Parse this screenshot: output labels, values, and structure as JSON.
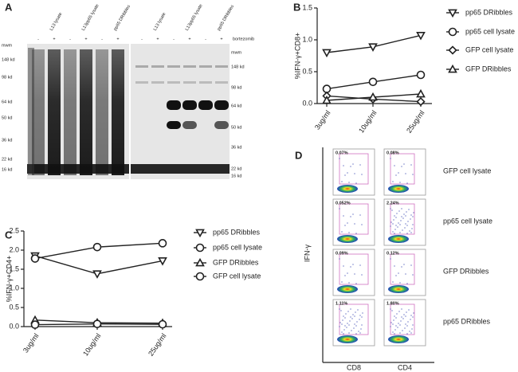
{
  "panel_a": {
    "panel": "A",
    "lanes_left": [
      "L13 lysate",
      "L13pp65 lysate",
      "pp65 DRibbles"
    ],
    "lanes_right": [
      "L13 lysate",
      "L13pp65 lysate",
      "pp65 DRibbles"
    ],
    "signs_left": [
      "-",
      "+",
      "-",
      "+",
      "-",
      "+"
    ],
    "signs_right": [
      "-",
      "+",
      "-",
      "+",
      "-",
      "+"
    ],
    "treatment": "bortezomib",
    "marker_title_left": "mwm",
    "marker_title_right": "mwm",
    "markers_left": [
      "148 kd",
      "98 kd",
      "64 kd",
      "50 kd",
      "36 kd",
      "22 kd",
      "16 kd"
    ],
    "markers_right": [
      "148 kd",
      "98 kd",
      "64 kd",
      "50 kd",
      "36 kd",
      "22 kd",
      "16 kd"
    ]
  },
  "chart_data": [
    {
      "type": "line",
      "panel": "B",
      "y_label": "%IFN-γ+CD8+",
      "categories": [
        "3ug/ml",
        "10ug/ml",
        "25ug/ml"
      ],
      "ylim": [
        0,
        1.5
      ],
      "yticks": [
        {
          "value": 0,
          "label": "0.0"
        },
        0.5,
        {
          "value": 1,
          "label": "1.0"
        },
        1.5
      ],
      "series": [
        {
          "name": "pp65 DRibbles",
          "color": "#222222",
          "marker": "triangle-down",
          "values": [
            0.8,
            0.89,
            1.07
          ]
        },
        {
          "name": "pp65 cell lysate",
          "color": "#222222",
          "marker": "circle",
          "values": [
            0.23,
            0.34,
            0.45
          ]
        },
        {
          "name": "GFP cell lysate",
          "color": "#222222",
          "marker": "diamond",
          "values": [
            0.12,
            0.07,
            0.03
          ]
        },
        {
          "name": "GFP DRibbles",
          "color": "#222222",
          "marker": "triangle-up",
          "values": [
            0.05,
            0.1,
            0.15
          ]
        }
      ]
    },
    {
      "type": "line",
      "panel": "C",
      "y_label": "%IFN-γ+CD4+",
      "categories": [
        "3ug/ml",
        "10ug/ml",
        "25ug/ml"
      ],
      "ylim": [
        0,
        2.5
      ],
      "yticks": [
        {
          "value": 0,
          "label": "0.0"
        },
        0.5,
        {
          "value": 1,
          "label": "1.0"
        },
        1.5,
        {
          "value": 2,
          "label": "2.0"
        },
        2.5
      ],
      "series": [
        {
          "name": "pp65 DRibbles",
          "color": "#222222",
          "marker": "triangle-down",
          "values": [
            1.85,
            1.38,
            1.72
          ]
        },
        {
          "name": "pp65 cell lysate",
          "color": "#222222",
          "marker": "circle",
          "values": [
            1.78,
            2.08,
            2.18
          ]
        },
        {
          "name": "GFP DRibbles",
          "color": "#222222",
          "marker": "triangle-up",
          "values": [
            0.17,
            0.1,
            0.09
          ]
        },
        {
          "name": "GFP cell lysate",
          "color": "#222222",
          "marker": "circle",
          "values": [
            0.05,
            0.07,
            0.06
          ]
        }
      ]
    }
  ],
  "panel_d": {
    "panel": "D",
    "y_label": "IFN-γ",
    "columns": [
      "CD8",
      "CD4"
    ],
    "rows": [
      "GFP cell lysate",
      "pp65 cell lysate",
      "GFP DRibbles",
      "pp65 DRibbles"
    ],
    "percentages": [
      [
        "0.07%",
        "0.08%"
      ],
      [
        "0.052%",
        "2.24%"
      ],
      [
        "0.09%",
        "0.12%"
      ],
      [
        "1.11%",
        "1.80%"
      ]
    ]
  }
}
